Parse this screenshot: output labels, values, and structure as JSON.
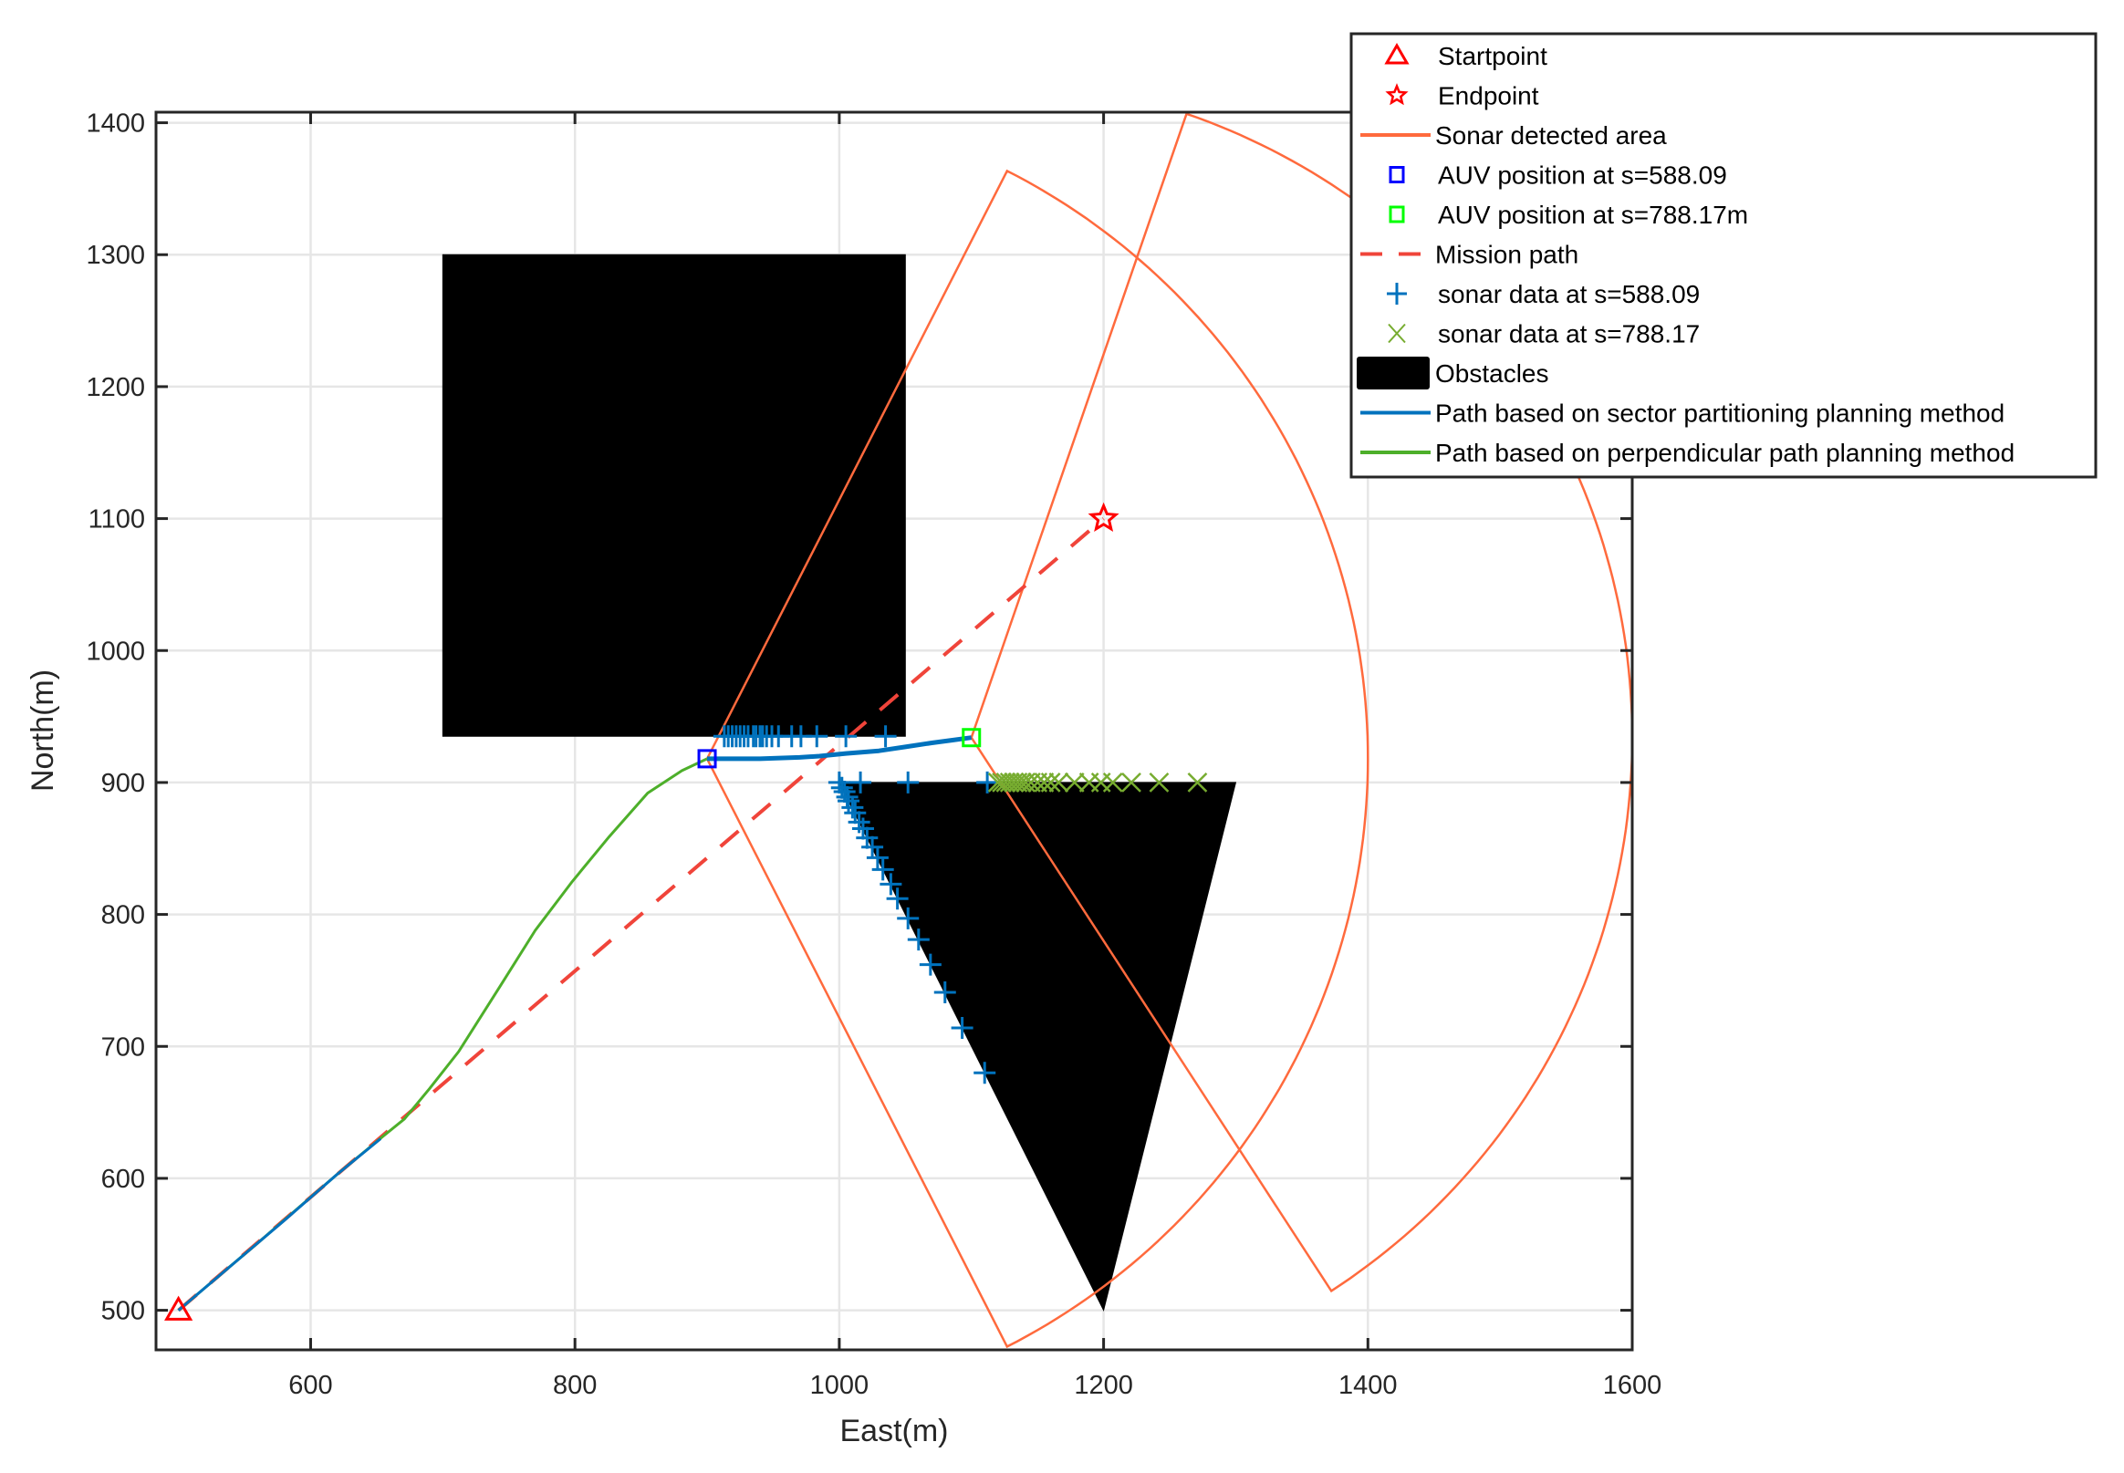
{
  "chart_data": {
    "type": "line",
    "title": "",
    "xlabel": "East(m)",
    "ylabel": "North(m)",
    "xlim": [
      483,
      1600
    ],
    "ylim": [
      470,
      1408
    ],
    "grid": true,
    "legend_position": "northeast-outside",
    "x_ticks": [
      600,
      800,
      1000,
      1200,
      1400,
      1600
    ],
    "y_ticks": [
      500,
      600,
      700,
      800,
      900,
      1000,
      1100,
      1200,
      1300,
      1400
    ],
    "legend": [
      {
        "label": "Startpoint",
        "marker": "triangle",
        "color": "#ff0000"
      },
      {
        "label": "Endpoint",
        "marker": "pentagram",
        "color": "#ff0000"
      },
      {
        "label": "Sonar detected area",
        "line": "solid",
        "color": "#ff6a3d"
      },
      {
        "label": "AUV position at s=588.09",
        "marker": "square",
        "color": "#0000ff"
      },
      {
        "label": "AUV position at s=788.17m",
        "marker": "square",
        "color": "#00ff00"
      },
      {
        "label": "Mission path",
        "line": "dashed",
        "color": "#f0443a"
      },
      {
        "label": "sonar data at s=588.09",
        "marker": "plus",
        "color": "#0072bd"
      },
      {
        "label": "sonar data at s=788.17",
        "marker": "x",
        "color": "#77ac30"
      },
      {
        "label": "Obstacles",
        "patch": true,
        "color": "#000000"
      },
      {
        "label": "Path based on sector partitioning planning method",
        "line": "solid",
        "color": "#0072bd"
      },
      {
        "label": "Path based on perpendicular path planning method",
        "line": "solid",
        "color": "#4daf2a"
      }
    ],
    "startpoint": {
      "x": 500,
      "y": 500
    },
    "endpoint": {
      "x": 1200,
      "y": 1100
    },
    "mission_path": [
      [
        500,
        500
      ],
      [
        1200,
        1100
      ]
    ],
    "auv_position_1": {
      "s": 588.09,
      "x": 900,
      "y": 918
    },
    "auv_position_2": {
      "s": 788.17,
      "x": 1100,
      "y": 934
    },
    "obstacles": [
      {
        "shape": "rectangle",
        "points": [
          [
            700,
            935
          ],
          [
            1050,
            935
          ],
          [
            1050,
            1300
          ],
          [
            700,
            1300
          ]
        ]
      },
      {
        "shape": "triangle",
        "points": [
          [
            1000,
            900
          ],
          [
            1300,
            900
          ],
          [
            1200,
            500
          ]
        ]
      }
    ],
    "sonar_sectors": [
      {
        "center": [
          900,
          918
        ],
        "radius": 500,
        "start_deg": -63,
        "end_deg": 63
      },
      {
        "center": [
          1100,
          934
        ],
        "radius": 500,
        "start_deg": -57,
        "end_deg": 71
      }
    ],
    "sonar_data_588": [
      [
        913,
        935
      ],
      [
        916,
        935
      ],
      [
        919,
        935
      ],
      [
        922,
        935
      ],
      [
        925,
        935
      ],
      [
        928,
        935
      ],
      [
        931,
        935
      ],
      [
        935,
        935
      ],
      [
        937,
        935
      ],
      [
        940,
        935
      ],
      [
        942,
        935
      ],
      [
        945,
        935
      ],
      [
        949,
        935
      ],
      [
        954,
        935
      ],
      [
        964,
        935
      ],
      [
        971,
        935
      ],
      [
        983,
        935
      ],
      [
        1005,
        935
      ],
      [
        1035,
        935
      ],
      [
        1000,
        900
      ],
      [
        1016,
        900
      ],
      [
        1052,
        900
      ],
      [
        1112,
        900
      ],
      [
        1002,
        896
      ],
      [
        1004,
        893
      ],
      [
        1006,
        889
      ],
      [
        1007,
        886
      ],
      [
        1010,
        881
      ],
      [
        1012,
        877
      ],
      [
        1015,
        870
      ],
      [
        1018,
        865
      ],
      [
        1021,
        858
      ],
      [
        1025,
        851
      ],
      [
        1029,
        843
      ],
      [
        1033,
        834
      ],
      [
        1039,
        823
      ],
      [
        1044,
        812
      ],
      [
        1052,
        797
      ],
      [
        1060,
        781
      ],
      [
        1069,
        762
      ],
      [
        1080,
        741
      ],
      [
        1093,
        714
      ],
      [
        1110,
        680
      ]
    ],
    "sonar_data_788": [
      [
        1120,
        900
      ],
      [
        1123,
        900
      ],
      [
        1126,
        900
      ],
      [
        1129,
        900
      ],
      [
        1132,
        900
      ],
      [
        1135,
        900
      ],
      [
        1138,
        900
      ],
      [
        1141,
        900
      ],
      [
        1145,
        900
      ],
      [
        1150,
        900
      ],
      [
        1155,
        900
      ],
      [
        1160,
        900
      ],
      [
        1166,
        900
      ],
      [
        1178,
        900
      ],
      [
        1189,
        900
      ],
      [
        1198,
        900
      ],
      [
        1207,
        900
      ],
      [
        1221,
        900
      ],
      [
        1242,
        900
      ],
      [
        1271,
        900
      ]
    ],
    "path_sector_partitioning": [
      [
        500,
        500
      ],
      [
        540,
        534
      ],
      [
        580,
        568
      ],
      [
        620,
        603
      ],
      [
        653,
        630
      ],
      [
        660,
        636
      ],
      [
        653,
        630
      ],
      [
        900,
        918
      ]
    ],
    "path_sector_partitioning_segment2": [
      [
        900,
        918
      ],
      [
        940,
        918
      ],
      [
        970,
        919
      ],
      [
        985,
        920
      ],
      [
        1005,
        922
      ],
      [
        1030,
        924
      ],
      [
        1050,
        927
      ],
      [
        1070,
        930
      ],
      [
        1085,
        932
      ],
      [
        1100,
        934
      ]
    ],
    "path_perpendicular": [
      [
        500,
        500
      ],
      [
        560,
        551
      ],
      [
        620,
        603
      ],
      [
        655,
        632
      ],
      [
        671,
        645
      ],
      [
        690,
        668
      ],
      [
        712,
        696
      ],
      [
        743,
        745
      ],
      [
        770,
        788
      ],
      [
        798,
        825
      ],
      [
        826,
        859
      ],
      [
        855,
        892
      ],
      [
        881,
        909
      ],
      [
        900,
        918
      ]
    ]
  },
  "figure": {
    "xlabel": "East(m)",
    "ylabel": "North(m)"
  }
}
